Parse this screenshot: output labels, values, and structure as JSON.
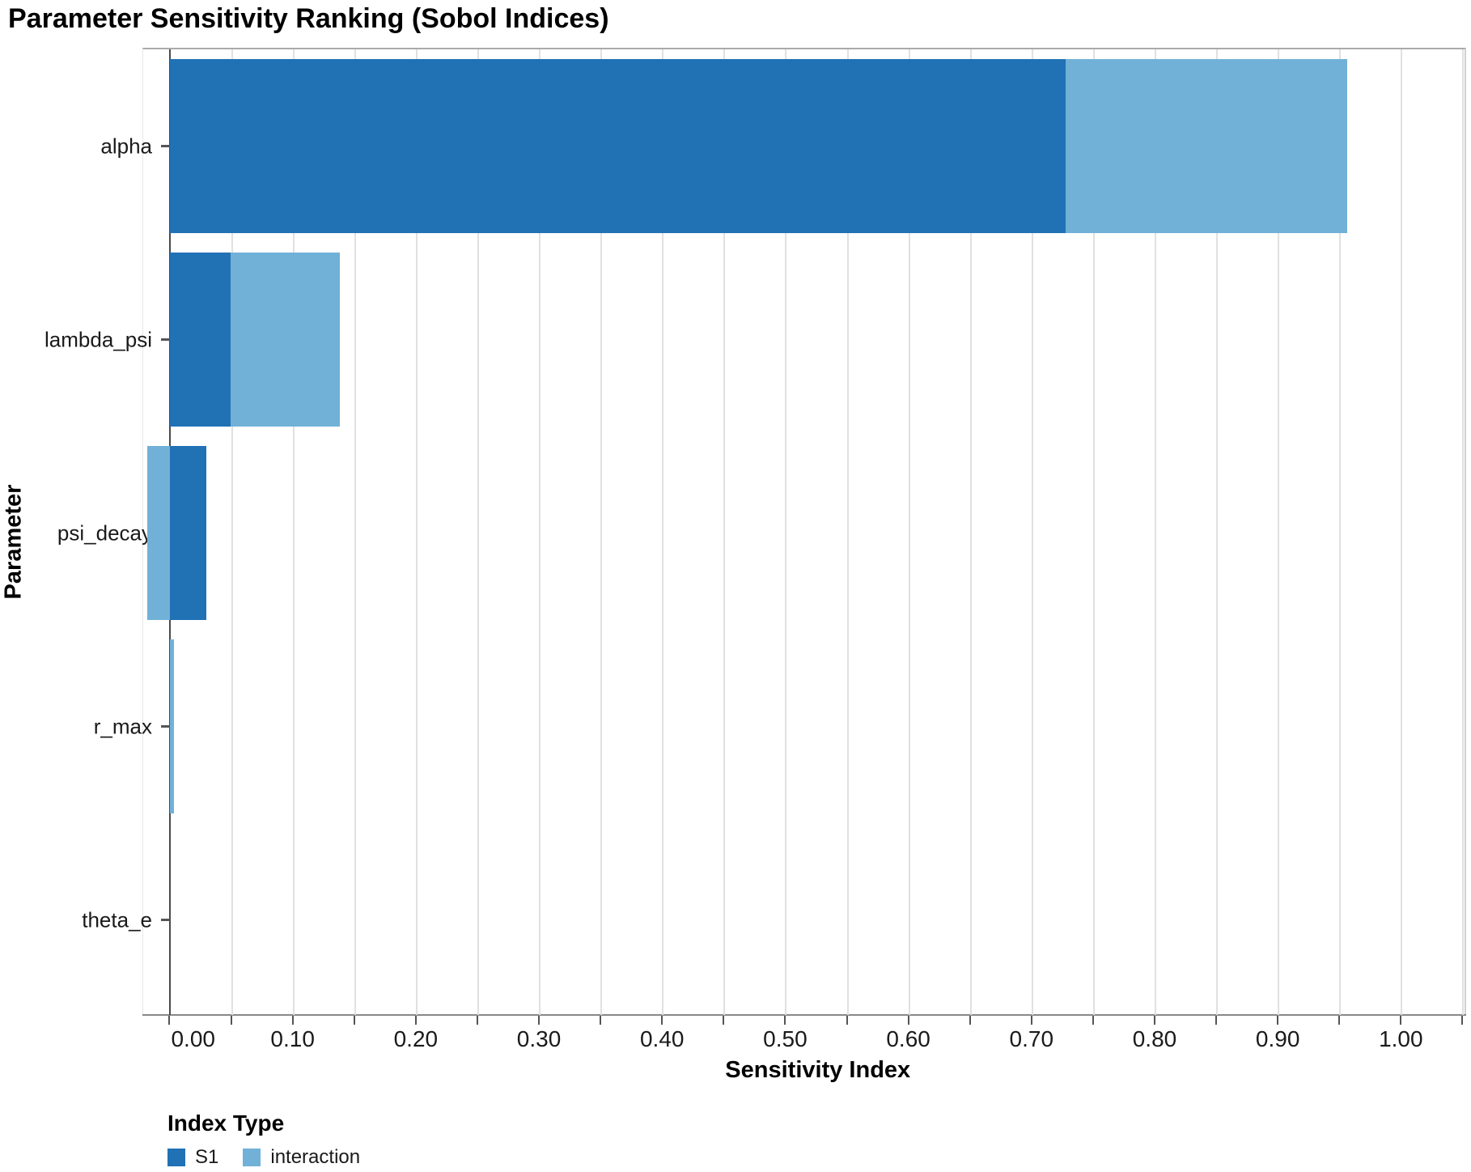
{
  "chart_data": {
    "type": "bar",
    "orientation": "horizontal",
    "stacked": true,
    "title": "Parameter Sensitivity Ranking (Sobol Indices)",
    "xlabel": "Sensitivity Index",
    "ylabel": "Parameter",
    "categories": [
      "alpha",
      "lambda_psi",
      "psi_decay",
      "r_max",
      "theta_e"
    ],
    "series": [
      {
        "name": "S1",
        "color": "#2171b5",
        "values": [
          0.727,
          0.049,
          0.029,
          0.0,
          0.0
        ]
      },
      {
        "name": "interaction",
        "color": "#71b1d7",
        "values": [
          0.229,
          0.089,
          -0.019,
          0.003,
          0.0
        ]
      }
    ],
    "xlim": [
      -0.022,
      1.053
    ],
    "x_tick_labels": [
      "0.00",
      "0.10",
      "0.20",
      "0.30",
      "0.40",
      "0.50",
      "0.60",
      "0.70",
      "0.80",
      "0.90",
      "1.00"
    ],
    "x_tick_label_step": 0.1,
    "minor_tick_step": 0.05,
    "grid": true,
    "legend_title": "Index Type",
    "legend_position": "bottom-left",
    "colors": {
      "grid": "#e0e0e0",
      "zero_axis": "#4a4a4a",
      "axis_line": "#888888",
      "tick": "#555555",
      "text": "#1a1a1a"
    }
  }
}
